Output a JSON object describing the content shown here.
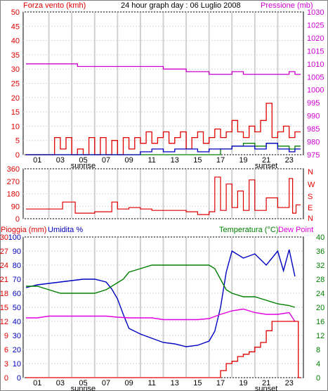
{
  "header": {
    "left_label": "Forza vento (kmh)",
    "title": "24 hour graph day : 06 Luglio 2008",
    "right_label": "Pressione (mb)"
  },
  "mid_panel": {
    "label_N": "N",
    "label_W": "W",
    "label_S": "S",
    "label_E": "E"
  },
  "bottom_header": {
    "rain_label": "Pioggia (mm)",
    "hum_label": "Umidita %",
    "temp_label": "Temperatura (°C)",
    "dew_label": "Dew Point"
  },
  "colors": {
    "wind": "#e00000",
    "gust_base": "#008000",
    "avg": "#0000c0",
    "pressure": "#d000d0",
    "direction": "#e00000",
    "humidity": "#0000c0",
    "temperature": "#008000",
    "dewpoint": "#e000e0",
    "rain": "#e00000"
  },
  "chart_data": [
    {
      "type": "line",
      "title": "24 hour graph day : 06 Luglio 2008",
      "x_ticks": [
        "01",
        "03",
        "05",
        "07",
        "09",
        "11",
        "13",
        "15",
        "17",
        "19",
        "21",
        "23"
      ],
      "x_annotations": [
        "sunrise",
        "sunset"
      ],
      "left_axis": {
        "label": "Forza vento (kmh)",
        "ticks": [
          0,
          5,
          10,
          15,
          20,
          25,
          30,
          35,
          40,
          45,
          50
        ],
        "range": [
          0,
          50
        ]
      },
      "right_axis": {
        "label": "Pressione (mb)",
        "ticks": [
          975,
          980,
          985,
          990,
          995,
          1000,
          1005,
          1010,
          1015,
          1020,
          1025,
          1030
        ],
        "range": [
          975,
          1030
        ]
      },
      "series": [
        {
          "name": "Pressione (mb)",
          "axis": "right",
          "x": [
            0,
            4,
            4.5,
            5,
            5.5,
            7,
            7.5,
            9,
            11,
            12,
            13,
            14,
            15,
            16,
            17,
            18,
            19,
            20,
            21,
            22,
            23,
            23.5
          ],
          "y": [
            1010,
            1010,
            1009,
            1009,
            1009,
            1009,
            1009,
            1009,
            1009,
            1008,
            1008,
            1007,
            1007,
            1006,
            1006,
            1007,
            1006,
            1006,
            1006,
            1006,
            1007,
            1006
          ]
        },
        {
          "name": "Forza vento (kmh)",
          "axis": "left",
          "x": [
            0,
            2,
            2.5,
            3,
            3.5,
            4,
            4.5,
            5,
            5.5,
            6,
            6.5,
            7,
            7.5,
            8,
            8.5,
            9,
            9.5,
            10,
            10.5,
            11,
            11.5,
            12,
            12.5,
            13,
            13.5,
            14,
            14.5,
            15,
            15.5,
            16,
            16.5,
            17,
            17.5,
            18,
            18.5,
            19,
            19.5,
            20,
            20.5,
            21,
            21.5,
            22,
            22.5,
            23,
            23.5
          ],
          "y": [
            0,
            0,
            6,
            2,
            6,
            0,
            2,
            0,
            6,
            0,
            6,
            0,
            5,
            0,
            6,
            2,
            6,
            4,
            8,
            4,
            6,
            8,
            4,
            6,
            8,
            2,
            6,
            8,
            4,
            6,
            9,
            6,
            8,
            12,
            8,
            6,
            10,
            8,
            12,
            18,
            6,
            8,
            10,
            6,
            8
          ]
        },
        {
          "name": "gust_base",
          "axis": "left",
          "x": [
            0,
            8,
            9,
            10,
            11,
            12,
            13,
            14,
            15,
            16,
            17,
            18,
            19,
            20,
            21,
            22,
            23,
            23.5
          ],
          "y": [
            0,
            0,
            0,
            0,
            0,
            0,
            0,
            0,
            0,
            0,
            2,
            3,
            4,
            3,
            4,
            3,
            2,
            3
          ]
        },
        {
          "name": "avg",
          "axis": "left",
          "x": [
            0,
            9,
            10,
            11,
            12,
            13,
            14,
            15,
            16,
            17,
            18,
            19,
            20,
            21,
            22,
            23,
            23.5
          ],
          "y": [
            0,
            0,
            1,
            2,
            1,
            2,
            2,
            1,
            2,
            2,
            3,
            3,
            2,
            4,
            2,
            1,
            2
          ]
        }
      ]
    },
    {
      "type": "line",
      "left_axis": {
        "ticks": [
          0,
          90,
          180,
          270,
          360
        ],
        "range": [
          0,
          360
        ]
      },
      "right_labels": [
        "N",
        "W",
        "S",
        "E",
        "N"
      ],
      "series": [
        {
          "name": "direction",
          "x": [
            0,
            3,
            3.2,
            4,
            4.3,
            5,
            6,
            7,
            7.5,
            8,
            9,
            10,
            11,
            12,
            13,
            14,
            15,
            16,
            16.5,
            17,
            17.5,
            18,
            18.5,
            19,
            19.5,
            20,
            21,
            22,
            23,
            23.3,
            23.6
          ],
          "y": [
            70,
            70,
            120,
            120,
            40,
            40,
            50,
            50,
            120,
            70,
            80,
            70,
            60,
            60,
            60,
            50,
            30,
            50,
            300,
            60,
            250,
            80,
            200,
            60,
            280,
            60,
            150,
            80,
            290,
            40,
            100
          ]
        }
      ]
    },
    {
      "type": "line",
      "rain_axis": {
        "label": "Pioggia (mm)",
        "ticks": [
          0,
          3,
          6,
          9,
          12,
          15,
          18,
          21,
          24,
          27,
          30
        ],
        "range": [
          0,
          30
        ]
      },
      "humidity_axis": {
        "label": "Umidita %",
        "ticks": [
          0,
          10,
          20,
          30,
          40,
          50,
          60,
          70,
          80,
          90,
          100
        ],
        "range": [
          0,
          100
        ]
      },
      "temperature_axis": {
        "label": "Temperatura (°C)",
        "ticks": [
          0,
          4,
          8,
          12,
          16,
          20,
          24,
          28,
          32,
          36,
          40
        ],
        "range": [
          0,
          40
        ]
      },
      "series": [
        {
          "name": "Umidita %",
          "x": [
            0,
            1,
            2,
            3,
            4,
            5,
            6,
            7,
            7.5,
            8,
            8.5,
            9,
            10,
            11,
            12,
            13,
            14,
            15,
            16,
            16.5,
            17,
            17.5,
            18,
            19,
            20,
            21,
            22,
            22.5,
            23,
            23.5
          ],
          "y": [
            64,
            66,
            67,
            68,
            69,
            70,
            70,
            68,
            63,
            56,
            45,
            35,
            31,
            28,
            25,
            24,
            22,
            23,
            26,
            33,
            50,
            75,
            90,
            85,
            88,
            80,
            90,
            76,
            91,
            72
          ]
        },
        {
          "name": "Temperatura (°C)",
          "x": [
            0,
            1,
            2,
            3,
            4,
            5,
            6,
            7,
            7.5,
            8,
            8.5,
            9,
            10,
            11,
            12,
            13,
            14,
            15,
            16,
            16.5,
            17,
            17.5,
            18,
            19,
            20,
            21,
            22,
            23,
            23.5
          ],
          "y": [
            26,
            26,
            25,
            24,
            24,
            24,
            24,
            25,
            26,
            27,
            28,
            30,
            31,
            32,
            32,
            32,
            32,
            32,
            32,
            31,
            28,
            25,
            24,
            23,
            23,
            22,
            21,
            20.5,
            20
          ]
        },
        {
          "name": "Dew Point",
          "x": [
            0,
            1,
            2,
            3,
            4,
            5,
            6,
            7,
            8,
            9,
            10,
            11,
            12,
            13,
            14,
            15,
            16,
            17,
            18,
            19,
            20,
            21,
            22,
            23,
            23.5
          ],
          "y": [
            17,
            17,
            17.5,
            17.5,
            17.5,
            17.5,
            17.5,
            17.5,
            17.2,
            17,
            17,
            17,
            16.5,
            16.5,
            16.5,
            16.5,
            16.8,
            18,
            19,
            19.5,
            18.5,
            18,
            18,
            18.5,
            16
          ]
        },
        {
          "name": "Pioggia (mm)",
          "x": [
            0,
            16.9,
            17,
            17.5,
            18,
            18.5,
            19,
            19.5,
            20,
            20.5,
            21,
            21.5,
            22,
            23,
            23.7,
            23.8
          ],
          "y": [
            0,
            0,
            1.5,
            3,
            3.5,
            4.5,
            5,
            5.5,
            6.5,
            7.5,
            10,
            12,
            12,
            12,
            12,
            0
          ]
        }
      ]
    }
  ]
}
